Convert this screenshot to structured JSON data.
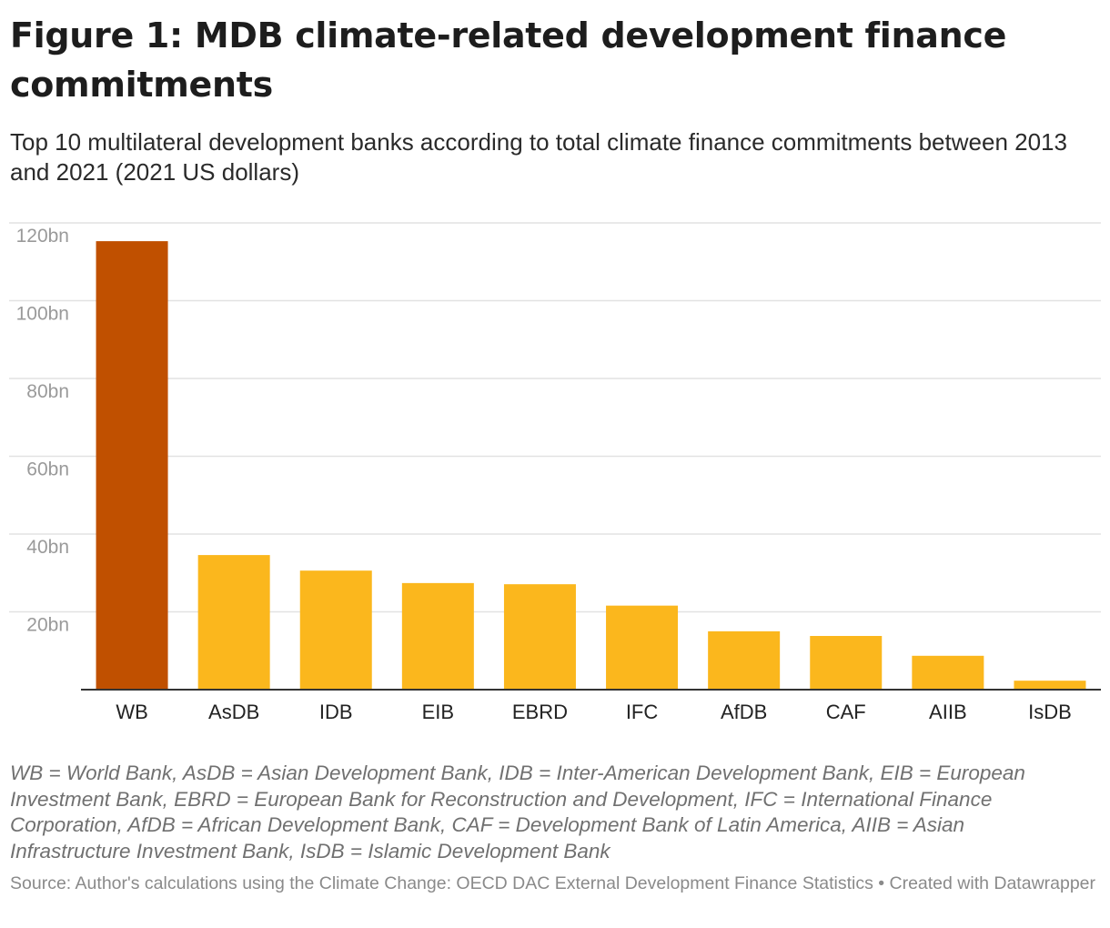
{
  "title": "Figure 1: MDB climate-related development finance commitments",
  "subtitle": "Top 10 multilateral development banks according to total climate finance commitments between 2013 and 2021 (2021 US dollars)",
  "chart_data": {
    "type": "bar",
    "categories": [
      "WB",
      "AsDB",
      "IDB",
      "EIB",
      "EBRD",
      "IFC",
      "AfDB",
      "CAF",
      "AIIB",
      "IsDB"
    ],
    "values": [
      115.3,
      34.6,
      30.6,
      27.4,
      27.1,
      21.6,
      15.0,
      13.8,
      8.7,
      2.3
    ],
    "unit": "bn",
    "ylim": [
      0,
      120
    ],
    "yticks": [
      20,
      40,
      60,
      80,
      100,
      120
    ],
    "ytick_labels": [
      "20bn",
      "40bn",
      "60bn",
      "80bn",
      "100bn",
      "120bn"
    ],
    "grid": true,
    "highlight_color": "#c05000",
    "bar_color": "#fbb71d"
  },
  "notes": "WB = World Bank, AsDB = Asian Development Bank, IDB = Inter-American Development Bank, EIB = European Investment Bank, EBRD = European Bank for Reconstruction and Development, IFC = International Finance Corporation, AfDB = African Development Bank, CAF = Development Bank of Latin America, AIIB = Asian Infrastructure Investment Bank, IsDB = Islamic Development Bank",
  "source": "Source: Author's calculations using the Climate Change: OECD DAC External Development Finance Statistics • Created with Datawrapper"
}
